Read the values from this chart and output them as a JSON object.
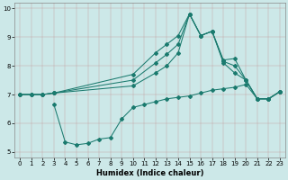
{
  "xlabel": "Humidex (Indice chaleur)",
  "bg_color": "#cce8e8",
  "line_color": "#1a7a6e",
  "xlim": [
    -0.5,
    23.5
  ],
  "ylim": [
    4.8,
    10.2
  ],
  "xticks": [
    0,
    1,
    2,
    3,
    4,
    5,
    6,
    7,
    8,
    9,
    10,
    11,
    12,
    13,
    14,
    15,
    16,
    17,
    18,
    19,
    20,
    21,
    22,
    23
  ],
  "yticks": [
    5,
    6,
    7,
    8,
    9,
    10
  ],
  "curve_top": {
    "x": [
      0,
      1,
      2,
      3,
      10,
      12,
      13,
      14,
      15,
      16,
      17,
      18,
      19,
      20,
      21,
      22,
      23
    ],
    "y": [
      7.0,
      7.0,
      7.0,
      7.05,
      7.7,
      8.45,
      8.75,
      9.05,
      9.8,
      9.05,
      9.2,
      8.2,
      8.25,
      7.5,
      6.85,
      6.85,
      7.1
    ]
  },
  "curve_mid1": {
    "x": [
      0,
      1,
      2,
      3,
      10,
      12,
      13,
      14,
      15,
      16,
      17,
      18,
      19,
      20,
      21,
      22,
      23
    ],
    "y": [
      7.0,
      7.0,
      7.0,
      7.05,
      7.5,
      8.1,
      8.4,
      8.75,
      9.8,
      9.05,
      9.2,
      8.15,
      8.0,
      7.5,
      6.85,
      6.85,
      7.1
    ]
  },
  "curve_mid2": {
    "x": [
      0,
      1,
      2,
      3,
      10,
      12,
      13,
      14,
      15,
      16,
      17,
      18,
      19,
      20,
      21,
      22,
      23
    ],
    "y": [
      7.0,
      7.0,
      7.0,
      7.05,
      7.3,
      7.75,
      8.0,
      8.45,
      9.8,
      9.05,
      9.2,
      8.1,
      7.75,
      7.5,
      6.85,
      6.85,
      7.1
    ]
  },
  "curve_bot": {
    "x": [
      3,
      4,
      5,
      6,
      7,
      8,
      9,
      10,
      11,
      12,
      13,
      14,
      15,
      16,
      17,
      18,
      19,
      20,
      21,
      22,
      23
    ],
    "y": [
      6.65,
      5.35,
      5.25,
      5.3,
      5.45,
      5.5,
      6.15,
      6.55,
      6.65,
      6.75,
      6.85,
      6.9,
      6.95,
      7.05,
      7.15,
      7.2,
      7.25,
      7.35,
      6.85,
      6.85,
      7.1
    ]
  },
  "markers_top": {
    "x": [
      0,
      2,
      3,
      10,
      12,
      13,
      14,
      15,
      16,
      17,
      18,
      19,
      20,
      21,
      22,
      23
    ],
    "y": [
      7.0,
      7.0,
      7.05,
      7.7,
      8.45,
      8.75,
      9.05,
      9.8,
      9.05,
      9.2,
      8.2,
      8.25,
      7.5,
      6.85,
      6.85,
      7.1
    ]
  },
  "markers_bot": {
    "x": [
      3,
      4,
      5,
      6,
      7,
      8,
      9,
      10
    ],
    "y": [
      6.65,
      5.35,
      5.25,
      5.3,
      5.45,
      5.5,
      6.15,
      6.55
    ]
  }
}
